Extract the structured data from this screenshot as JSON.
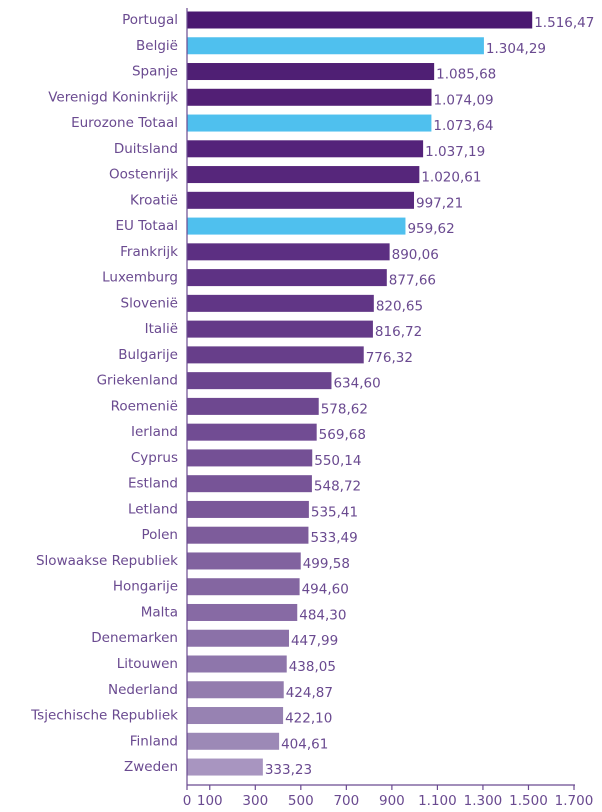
{
  "chart_data": {
    "type": "hbar",
    "categories": [
      "Portugal",
      "België",
      "Spanje",
      "Verenigd Koninkrijk",
      "Eurozone Totaal",
      "Duitsland",
      "Oostenrijk",
      "Kroatië",
      "EU Totaal",
      "Frankrijk",
      "Luxemburg",
      "Slovenië",
      "Italië",
      "Bulgarije",
      "Griekenland",
      "Roemenië",
      "Ierland",
      "Cyprus",
      "Estland",
      "Letland",
      "Polen",
      "Slowaakse Republiek",
      "Hongarije",
      "Malta",
      "Denemarken",
      "Litouwen",
      "Nederland",
      "Tsjechische Republiek",
      "Finland",
      "Zweden"
    ],
    "values": [
      1516.47,
      1304.29,
      1085.68,
      1074.09,
      1073.64,
      1037.19,
      1020.61,
      997.21,
      959.62,
      890.06,
      877.66,
      820.65,
      816.72,
      776.32,
      634.6,
      578.62,
      569.68,
      550.14,
      548.72,
      535.41,
      533.49,
      499.58,
      494.6,
      484.3,
      447.99,
      438.05,
      424.87,
      422.1,
      404.61,
      333.23
    ],
    "value_labels": [
      "1.516,47",
      "1.304,29",
      "1.085,68",
      "1.074,09",
      "1.073,64",
      "1.037,19",
      "1.020,61",
      "997,21",
      "959,62",
      "890,06",
      "877,66",
      "820,65",
      "816,72",
      "776,32",
      "634,60",
      "578,62",
      "569,68",
      "550,14",
      "548,72",
      "535,41",
      "533,49",
      "499,58",
      "494,60",
      "484,30",
      "447,99",
      "438,05",
      "424,87",
      "422,10",
      "404,61",
      "333,23"
    ],
    "colors": [
      "#4a1870",
      "#4fc0ee",
      "#4f1f74",
      "#521f75",
      "#4fc0ee",
      "#54237a",
      "#56267b",
      "#58297d",
      "#4fc0ee",
      "#5c2f82",
      "#5e3284",
      "#613686",
      "#643a88",
      "#673e8a",
      "#6b448e",
      "#6e4890",
      "#714c93",
      "#745095",
      "#775497",
      "#7a5899",
      "#7d5c9b",
      "#81629f",
      "#8466a1",
      "#876aa4",
      "#8b71a8",
      "#8e76ab",
      "#937cae",
      "#9782b2",
      "#9c89b6",
      "#a895c0"
    ],
    "xlim": [
      0,
      1700
    ],
    "xticks": [
      0,
      100,
      300,
      500,
      700,
      900,
      {
        "value": 1100,
        "label": "1.100"
      },
      {
        "value": 1300,
        "label": "1.300"
      },
      {
        "value": 1500,
        "label": "1.500"
      },
      {
        "value": 1700,
        "label": "1.700"
      }
    ]
  }
}
